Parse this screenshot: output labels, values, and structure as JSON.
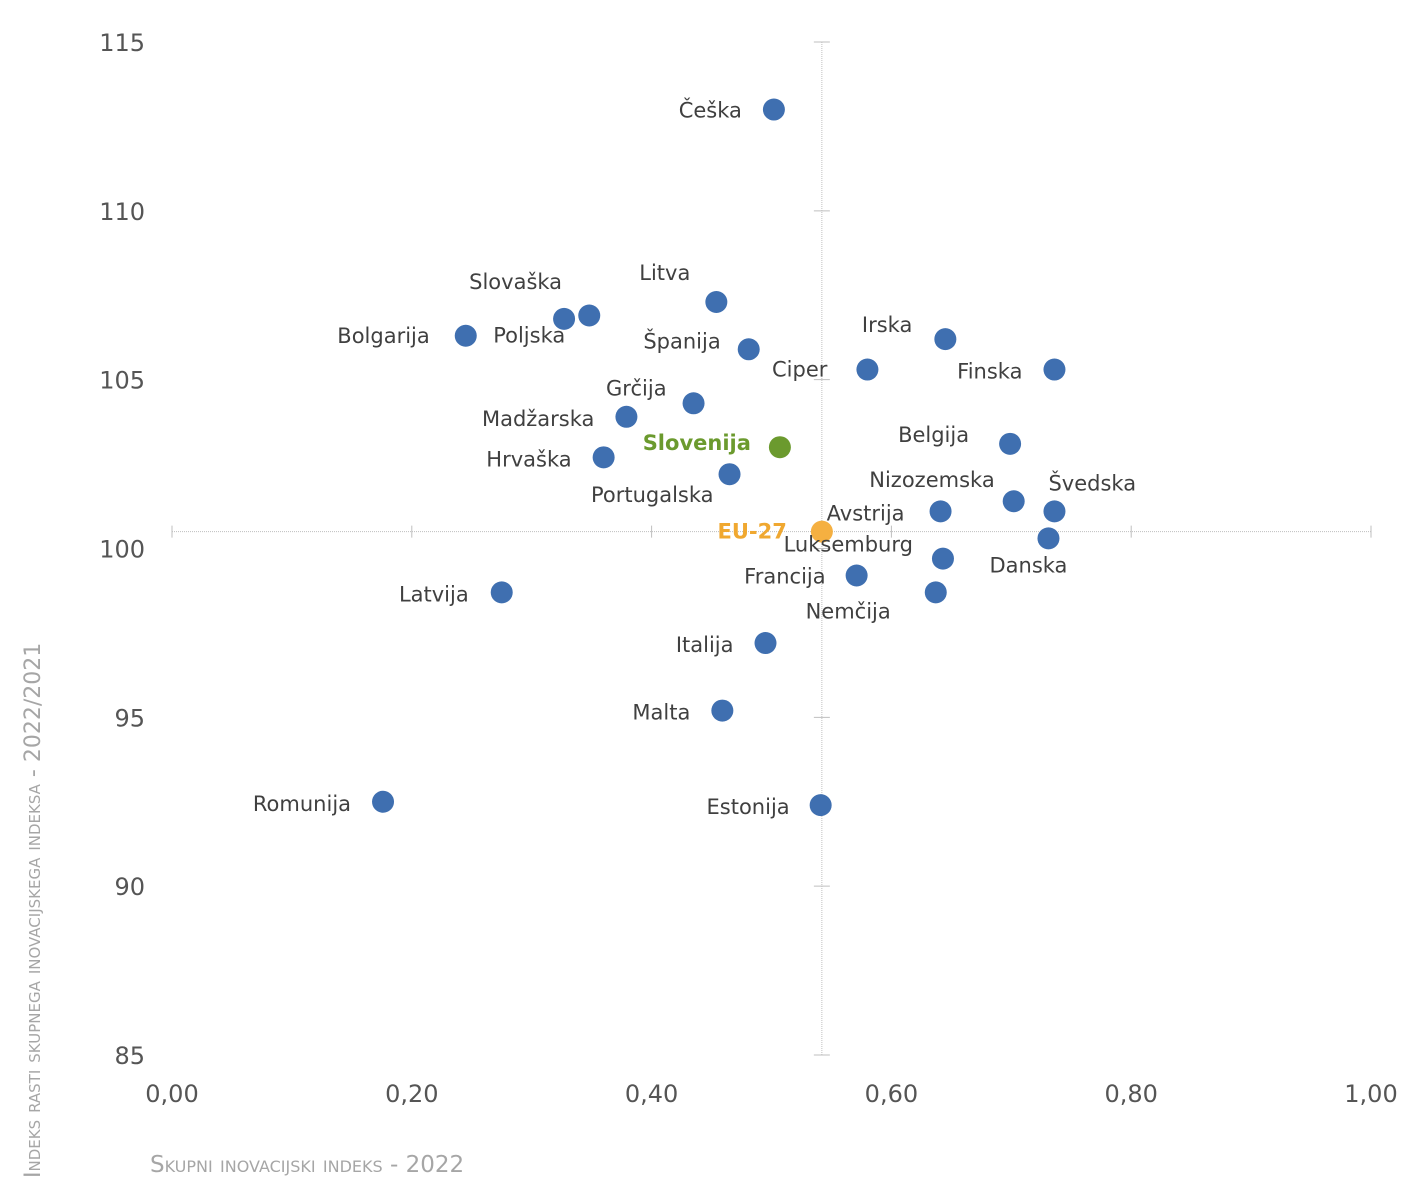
{
  "chart_data": {
    "type": "scatter",
    "xlabel": "Skupni inovacijski indeks - 2022",
    "ylabel": "Indeks rasti skupnega inovacijskega indeksa - 2022/2021",
    "xlim": [
      0,
      1
    ],
    "ylim": [
      85,
      115
    ],
    "x_ticks": [
      "0,00",
      "0,20",
      "0,40",
      "0,60",
      "0,80",
      "1,00"
    ],
    "y_ticks": [
      "85",
      "90",
      "95",
      "100",
      "105",
      "110",
      "115"
    ],
    "crosshair": {
      "x": 0.542,
      "y": 100.5
    },
    "colors": {
      "default": "#3f6fb0",
      "slovenia": "#6b9a2e",
      "eu": "#f5b041"
    },
    "points": [
      {
        "name": "Češka",
        "x": 0.502,
        "y": 113.0
      },
      {
        "name": "Litva",
        "x": 0.454,
        "y": 107.3
      },
      {
        "name": "Slovaška",
        "x": 0.327,
        "y": 106.8
      },
      {
        "name": "Poljska",
        "x": 0.348,
        "y": 106.9
      },
      {
        "name": "Bolgarija",
        "x": 0.245,
        "y": 106.3
      },
      {
        "name": "Španija",
        "x": 0.481,
        "y": 105.9
      },
      {
        "name": "Irska",
        "x": 0.645,
        "y": 106.2
      },
      {
        "name": "Ciper",
        "x": 0.58,
        "y": 105.3
      },
      {
        "name": "Finska",
        "x": 0.736,
        "y": 105.3
      },
      {
        "name": "Grčija",
        "x": 0.435,
        "y": 104.3
      },
      {
        "name": "Madžarska",
        "x": 0.379,
        "y": 103.9
      },
      {
        "name": "Belgija",
        "x": 0.699,
        "y": 103.1
      },
      {
        "name": "Slovenija",
        "x": 0.507,
        "y": 103.0,
        "kind": "slovenia"
      },
      {
        "name": "Hrvaška",
        "x": 0.36,
        "y": 102.7
      },
      {
        "name": "Portugalska",
        "x": 0.465,
        "y": 102.2
      },
      {
        "name": "Nizozemska",
        "x": 0.702,
        "y": 101.4
      },
      {
        "name": "Švedska",
        "x": 0.736,
        "y": 101.1
      },
      {
        "name": "Avstrija",
        "x": 0.641,
        "y": 101.1
      },
      {
        "name": "EU-27",
        "x": 0.542,
        "y": 100.5,
        "kind": "eu"
      },
      {
        "name": "Luksemburg",
        "x": 0.643,
        "y": 99.7
      },
      {
        "name": "Danska",
        "x": 0.731,
        "y": 100.3
      },
      {
        "name": "Francija",
        "x": 0.571,
        "y": 99.2
      },
      {
        "name": "Nemčija",
        "x": 0.637,
        "y": 98.7
      },
      {
        "name": "Latvija",
        "x": 0.275,
        "y": 98.7
      },
      {
        "name": "Italija",
        "x": 0.495,
        "y": 97.2
      },
      {
        "name": "Malta",
        "x": 0.459,
        "y": 95.2
      },
      {
        "name": "Romunija",
        "x": 0.176,
        "y": 92.5
      },
      {
        "name": "Estonija",
        "x": 0.541,
        "y": 92.4
      }
    ]
  }
}
